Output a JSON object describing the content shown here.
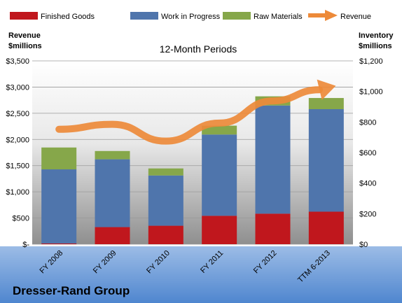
{
  "chart_data": {
    "type": "bar",
    "stacked": true,
    "subtitle": "12-Month Periods",
    "footer_title": "Dresser-Rand Group",
    "categories": [
      "FY 2008",
      "FY 2009",
      "FY 2010",
      "FY 2011",
      "FY 2012",
      "TTM 6-2013"
    ],
    "left_axis": {
      "label_line1": "Revenue",
      "label_line2": "$millions",
      "ticks": [
        "$-",
        "$500",
        "$1,000",
        "$1,500",
        "$2,000",
        "$2,500",
        "$3,000",
        "$3,500"
      ],
      "ylim": [
        0,
        3500
      ]
    },
    "right_axis": {
      "label_line1": "Inventory",
      "label_line2": "$millions",
      "ticks": [
        "$0",
        "$200",
        "$400",
        "$600",
        "$800",
        "$1,000",
        "$1,200"
      ],
      "ylim": [
        0,
        1200
      ]
    },
    "series": [
      {
        "name": "Finished Goods",
        "color": "#c0171d",
        "axis": "right",
        "values": [
          5,
          112,
          121,
          186,
          200,
          213
        ]
      },
      {
        "name": "Work in Progress",
        "color": "#4f75ac",
        "axis": "right",
        "values": [
          485,
          444,
          329,
          532,
          708,
          671
        ]
      },
      {
        "name": "Raw Materials",
        "color": "#86a74a",
        "axis": "right",
        "values": [
          143,
          54,
          46,
          58,
          60,
          73
        ]
      },
      {
        "name": "Revenue",
        "color": "#ed8a39",
        "axis": "left",
        "type": "line",
        "values": [
          2194,
          2290,
          1968,
          2312,
          2736,
          2980
        ]
      }
    ],
    "legend_position": "top",
    "grid": true
  }
}
